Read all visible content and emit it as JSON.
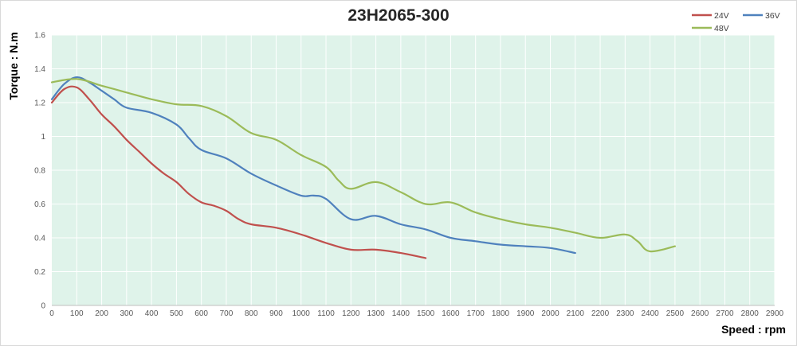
{
  "chart_data": {
    "type": "line",
    "title": "23H2065-300",
    "xlabel": "Speed : rpm",
    "ylabel": "Torque : N.m",
    "xlim": [
      0,
      2900
    ],
    "ylim": [
      0,
      1.6
    ],
    "x_ticks": [
      0,
      100,
      200,
      300,
      400,
      500,
      600,
      700,
      800,
      900,
      1000,
      1100,
      1200,
      1300,
      1400,
      1500,
      1600,
      1700,
      1800,
      1900,
      2000,
      2100,
      2200,
      2300,
      2400,
      2500,
      2600,
      2700,
      2800,
      2900
    ],
    "y_ticks": [
      0,
      0.2,
      0.4,
      0.6,
      0.8,
      1,
      1.2,
      1.4,
      1.6
    ],
    "y_tick_labels": [
      "0",
      "0.2",
      "0.4",
      "0.6",
      "0.8",
      "1",
      "1.2",
      "1.4",
      "1.6"
    ],
    "grid": true,
    "legend_position": "top-right",
    "plot_background": "#dff3ea",
    "series": [
      {
        "name": "24V",
        "color": "#c0504d",
        "x": [
          0,
          50,
          100,
          150,
          200,
          250,
          300,
          350,
          400,
          450,
          500,
          550,
          600,
          650,
          700,
          750,
          800,
          900,
          1000,
          1100,
          1200,
          1300,
          1400,
          1500
        ],
        "y": [
          1.2,
          1.28,
          1.29,
          1.22,
          1.13,
          1.06,
          0.98,
          0.91,
          0.84,
          0.78,
          0.73,
          0.66,
          0.61,
          0.59,
          0.56,
          0.51,
          0.48,
          0.46,
          0.42,
          0.37,
          0.33,
          0.33,
          0.31,
          0.28
        ]
      },
      {
        "name": "36V",
        "color": "#4f81bd",
        "x": [
          0,
          50,
          100,
          150,
          200,
          250,
          300,
          400,
          500,
          550,
          600,
          700,
          800,
          900,
          1000,
          1050,
          1100,
          1200,
          1300,
          1400,
          1500,
          1600,
          1700,
          1800,
          1900,
          2000,
          2100
        ],
        "y": [
          1.22,
          1.31,
          1.35,
          1.32,
          1.27,
          1.22,
          1.17,
          1.14,
          1.07,
          0.99,
          0.92,
          0.87,
          0.78,
          0.71,
          0.65,
          0.65,
          0.63,
          0.51,
          0.53,
          0.48,
          0.45,
          0.4,
          0.38,
          0.36,
          0.35,
          0.34,
          0.31
        ]
      },
      {
        "name": "48V",
        "color": "#9bbb59",
        "x": [
          0,
          100,
          200,
          300,
          400,
          500,
          600,
          700,
          800,
          900,
          1000,
          1100,
          1150,
          1200,
          1300,
          1400,
          1500,
          1600,
          1700,
          1800,
          1900,
          2000,
          2100,
          2200,
          2300,
          2350,
          2400,
          2500
        ],
        "y": [
          1.32,
          1.34,
          1.3,
          1.26,
          1.22,
          1.19,
          1.18,
          1.12,
          1.02,
          0.98,
          0.89,
          0.82,
          0.74,
          0.69,
          0.73,
          0.67,
          0.6,
          0.61,
          0.55,
          0.51,
          0.48,
          0.46,
          0.43,
          0.4,
          0.42,
          0.38,
          0.32,
          0.35
        ]
      }
    ]
  }
}
